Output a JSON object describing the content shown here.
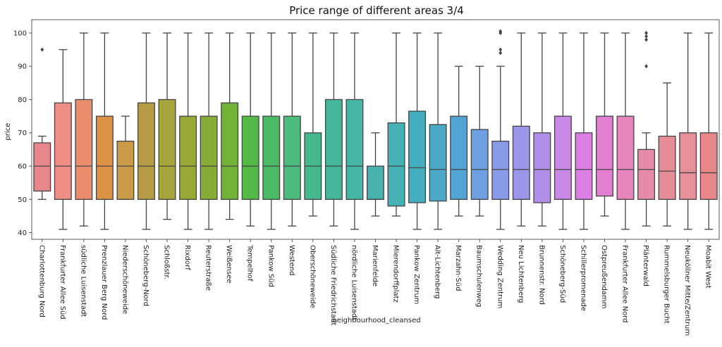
{
  "chart_data": {
    "type": "box",
    "title": "Price range of different areas 3/4",
    "xlabel": "neighbourhood_cleansed",
    "ylabel": "price",
    "ylim": [
      38,
      104
    ],
    "yticks": [
      40,
      50,
      60,
      70,
      80,
      90,
      100
    ],
    "grid": false,
    "colors": [
      "#e8878a",
      "#ee8e86",
      "#ea8d6f",
      "#de9246",
      "#c99a47",
      "#b69d43",
      "#a8a53c",
      "#99a938",
      "#87ad37",
      "#71b338",
      "#55b948",
      "#4aba65",
      "#4bbb7e",
      "#45b88f",
      "#47b79c",
      "#48b6a6",
      "#48b3ae",
      "#45b1b5",
      "#45aebe",
      "#4ba9c7",
      "#52a4d3",
      "#6f9fe3",
      "#889ae8",
      "#9a96e8",
      "#b18ee8",
      "#c987e6",
      "#dd7ee6",
      "#e37ed3",
      "#e584bd",
      "#e68aa9",
      "#e68e98",
      "#e6909a"
    ],
    "categories": [
      "Charlottenburg Nord",
      "Frankfurter Allee Süd",
      "südliche Luisenstadt",
      "Prenzlauer Berg Nord",
      "Niederschöneweide",
      "Schöneberg-Nord",
      "Schloßstr.",
      "Rixdorf",
      "Reuterstraße",
      "Weißensee",
      "Tempelhof",
      "Pankow Süd",
      "Westend",
      "Oberschöneweide",
      "Südliche Friedrichstadt",
      "nördliche Luisenstadt",
      "Marienfelde",
      "Mierendorffplatz",
      "Pankow Zentrum",
      "Alt-Lichtenberg",
      "Marzahn-Süd",
      "Baumschulenweg",
      "Wedding Zentrum",
      "Neu Lichtenberg",
      "Brunnenstr. Nord",
      "Schöneberg-Süd",
      "Schillerpromenade",
      "Ostpreußendamm",
      "Frankfurter Allee Nord",
      "Plänterwald",
      "Rummelsburger Bucht",
      "Neuköllner Mitte/Zentrum",
      "Moabit West"
    ],
    "boxes": [
      {
        "wlo": 50,
        "q1": 52.5,
        "med": 60,
        "q3": 67,
        "whi": 69,
        "out": [
          95
        ]
      },
      {
        "wlo": 41,
        "q1": 50,
        "med": 60,
        "q3": 79,
        "whi": 95,
        "out": []
      },
      {
        "wlo": 42,
        "q1": 50,
        "med": 60,
        "q3": 80,
        "whi": 100,
        "out": []
      },
      {
        "wlo": 41,
        "q1": 50,
        "med": 60,
        "q3": 75,
        "whi": 100,
        "out": []
      },
      {
        "wlo": 50,
        "q1": 50,
        "med": 60,
        "q3": 67.5,
        "whi": 75,
        "out": []
      },
      {
        "wlo": 41,
        "q1": 50,
        "med": 60,
        "q3": 79,
        "whi": 100,
        "out": []
      },
      {
        "wlo": 44,
        "q1": 50,
        "med": 60,
        "q3": 80,
        "whi": 100,
        "out": []
      },
      {
        "wlo": 41,
        "q1": 50,
        "med": 60,
        "q3": 75,
        "whi": 100,
        "out": []
      },
      {
        "wlo": 41,
        "q1": 50,
        "med": 60,
        "q3": 75,
        "whi": 100,
        "out": []
      },
      {
        "wlo": 44,
        "q1": 50,
        "med": 60,
        "q3": 79,
        "whi": 100,
        "out": []
      },
      {
        "wlo": 42,
        "q1": 50,
        "med": 60,
        "q3": 75,
        "whi": 100,
        "out": []
      },
      {
        "wlo": 41,
        "q1": 50,
        "med": 60,
        "q3": 75,
        "whi": 100,
        "out": []
      },
      {
        "wlo": 42,
        "q1": 50,
        "med": 60,
        "q3": 75,
        "whi": 100,
        "out": []
      },
      {
        "wlo": 45,
        "q1": 50,
        "med": 60,
        "q3": 70,
        "whi": 100,
        "out": []
      },
      {
        "wlo": 42,
        "q1": 50,
        "med": 60,
        "q3": 80,
        "whi": 100,
        "out": []
      },
      {
        "wlo": 41,
        "q1": 50,
        "med": 60,
        "q3": 80,
        "whi": 100,
        "out": []
      },
      {
        "wlo": 45,
        "q1": 50,
        "med": 50,
        "q3": 60,
        "whi": 70,
        "out": []
      },
      {
        "wlo": 45,
        "q1": 48,
        "med": 60,
        "q3": 73,
        "whi": 100,
        "out": []
      },
      {
        "wlo": 41,
        "q1": 49,
        "med": 59.5,
        "q3": 76.5,
        "whi": 100,
        "out": []
      },
      {
        "wlo": 41,
        "q1": 49.5,
        "med": 59,
        "q3": 72.5,
        "whi": 100,
        "out": []
      },
      {
        "wlo": 45,
        "q1": 50,
        "med": 59,
        "q3": 75,
        "whi": 90,
        "out": []
      },
      {
        "wlo": 45,
        "q1": 50,
        "med": 59,
        "q3": 71,
        "whi": 90,
        "out": []
      },
      {
        "wlo": 41,
        "q1": 50,
        "med": 59,
        "q3": 67.5,
        "whi": 90,
        "out": [
          94,
          95,
          100,
          100.5
        ]
      },
      {
        "wlo": 42,
        "q1": 50,
        "med": 59,
        "q3": 72,
        "whi": 100,
        "out": []
      },
      {
        "wlo": 42,
        "q1": 49,
        "med": 59,
        "q3": 70,
        "whi": 100,
        "out": []
      },
      {
        "wlo": 41,
        "q1": 50,
        "med": 59,
        "q3": 75,
        "whi": 100,
        "out": []
      },
      {
        "wlo": 41,
        "q1": 50,
        "med": 59,
        "q3": 70,
        "whi": 100,
        "out": []
      },
      {
        "wlo": 45,
        "q1": 51,
        "med": 59,
        "q3": 75,
        "whi": 100,
        "out": []
      },
      {
        "wlo": 41,
        "q1": 50,
        "med": 59,
        "q3": 75,
        "whi": 100,
        "out": []
      },
      {
        "wlo": 42,
        "q1": 50,
        "med": 59,
        "q3": 65,
        "whi": 70,
        "out": [
          90,
          98,
          99,
          100
        ]
      },
      {
        "wlo": 42,
        "q1": 50,
        "med": 58.5,
        "q3": 69,
        "whi": 85,
        "out": []
      },
      {
        "wlo": 41,
        "q1": 50,
        "med": 58,
        "q3": 70,
        "whi": 100,
        "out": []
      },
      {
        "wlo": 41,
        "q1": 50,
        "med": 58,
        "q3": 70,
        "whi": 100,
        "out": []
      }
    ]
  }
}
